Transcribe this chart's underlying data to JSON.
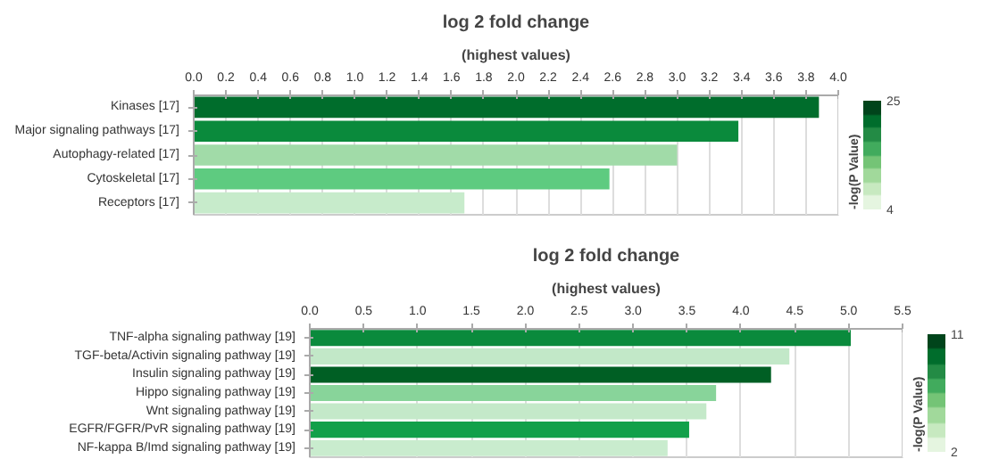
{
  "chart_data": [
    {
      "type": "bar",
      "orientation": "horizontal",
      "title": "log 2 fold change",
      "xlabel": "(highest values)",
      "clabel": "-log(P Value)",
      "categories": [
        "Kinases [17]",
        "Major signaling pathways [17]",
        "Autophagy-related [17]",
        "Cytoskeletal [17]",
        "Receptors [17]"
      ],
      "values": [
        3.88,
        3.38,
        3.0,
        2.58,
        1.68
      ],
      "colors": [
        "#006d2c",
        "#0a8a3c",
        "#a1dba8",
        "#5ecb80",
        "#c7ebcb"
      ],
      "xlim": [
        0,
        4.0
      ],
      "xticks": [
        {
          "value": 0,
          "label": "0.0"
        },
        0.2,
        0.4,
        0.6,
        0.8,
        {
          "value": 1,
          "label": "1.0"
        },
        1.2,
        1.4,
        1.6,
        1.8,
        {
          "value": 2,
          "label": "2.0"
        },
        2.2,
        2.4,
        2.6,
        2.8,
        {
          "value": 3,
          "label": "3.0"
        },
        3.2,
        3.4,
        3.6,
        3.8,
        {
          "value": 4,
          "label": "4.0"
        }
      ],
      "clim": [
        4,
        25
      ],
      "cticks": [
        4,
        25
      ],
      "grid": "x"
    },
    {
      "type": "bar",
      "orientation": "horizontal",
      "title": "log 2 fold change",
      "xlabel": "(highest values)",
      "clabel": "-log(P Value)",
      "categories": [
        "TNF-alpha signaling pathway [19]",
        "TGF-beta/Activin signaling pathway [19]",
        "Insulin signaling pathway [19]",
        "Hippo signaling pathway [19]",
        "Wnt signaling pathway [19]",
        "EGFR/FGFR/PvR signaling pathway [19]",
        "NF-kappa B/Imd signaling pathway [19]"
      ],
      "values": [
        5.02,
        4.45,
        4.28,
        3.77,
        3.68,
        3.52,
        3.32
      ],
      "colors": [
        "#0a8a3c",
        "#c2e8c8",
        "#005f24",
        "#88d49a",
        "#c4e9c9",
        "#12a04a",
        "#c9ecce"
      ],
      "xlim": [
        0,
        5.5
      ],
      "xticks": [
        {
          "value": 0,
          "label": "0.0"
        },
        0.5,
        {
          "value": 1,
          "label": "1.0"
        },
        1.5,
        {
          "value": 2,
          "label": "2.0"
        },
        2.5,
        {
          "value": 3,
          "label": "3.0"
        },
        3.5,
        {
          "value": 4,
          "label": "4.0"
        },
        4.5,
        {
          "value": 5,
          "label": "5.0"
        },
        5.5
      ],
      "clim": [
        2,
        11
      ],
      "cticks": [
        2,
        11
      ],
      "grid": "x"
    }
  ]
}
